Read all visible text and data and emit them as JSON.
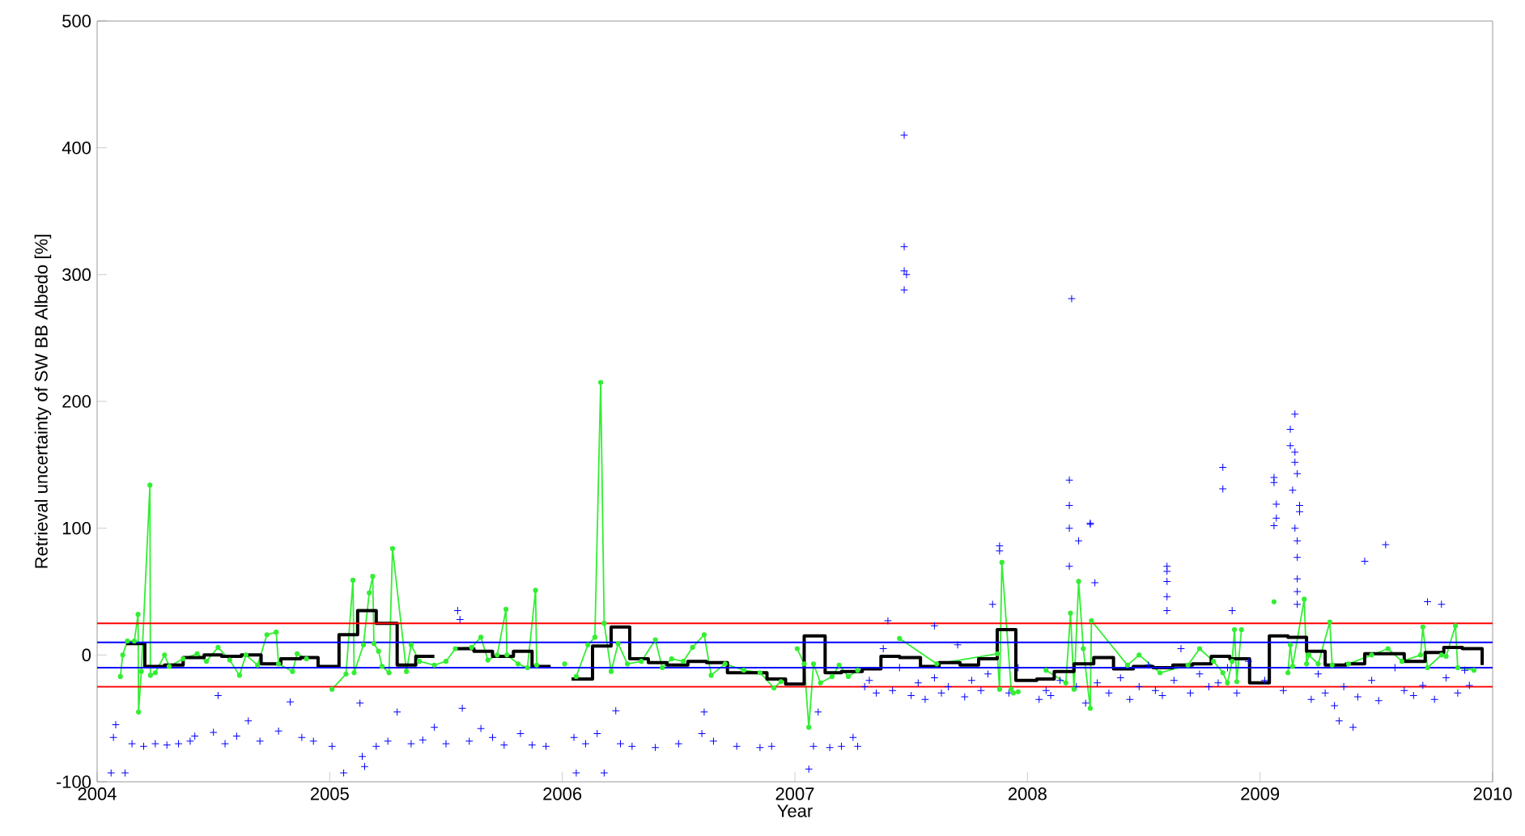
{
  "chart_data": {
    "type": "line",
    "xlabel": "Year",
    "ylabel": "Retrieval uncertainty of SW BB Albedo [%]",
    "xlim": [
      2004,
      2010
    ],
    "xticks": [
      2004,
      2005,
      2006,
      2007,
      2008,
      2009,
      2010
    ],
    "ylim": [
      -100,
      500
    ],
    "yticks": [
      -100,
      0,
      100,
      200,
      300,
      400,
      500
    ],
    "grid": false,
    "series": [
      {
        "type": "scatter",
        "marker": "cross",
        "color": "#0000ff",
        "x": [
          2004.06,
          2004.12,
          2004.08,
          2004.07,
          2004.15,
          2004.2,
          2004.25,
          2004.3,
          2004.35,
          2004.4,
          2004.42,
          2004.5,
          2004.52,
          2004.55,
          2004.6,
          2004.65,
          2004.7,
          2004.78,
          2004.83,
          2004.88,
          2004.93,
          2005.01,
          2005.06,
          2005.13,
          2005.14,
          2005.15,
          2005.2,
          2005.25,
          2005.29,
          2005.35,
          2005.4,
          2005.45,
          2005.5,
          2005.57,
          2005.55,
          2005.56,
          2005.6,
          2005.65,
          2005.7,
          2005.75,
          2005.82,
          2005.87,
          2005.93,
          2006.05,
          2006.06,
          2006.1,
          2006.15,
          2006.18,
          2006.23,
          2006.25,
          2006.3,
          2006.4,
          2006.5,
          2006.6,
          2006.61,
          2006.65,
          2006.75,
          2006.85,
          2006.9,
          2007.06,
          2007.08,
          2007.1,
          2007.15,
          2007.2,
          2007.25,
          2007.27,
          2007.47,
          2007.47,
          2007.47,
          2007.48,
          2007.47,
          2007.4,
          2007.6,
          2007.85,
          2007.88,
          2007.88,
          2008.19,
          2008.18,
          2008.18,
          2008.18,
          2008.18,
          2008.27,
          2008.27,
          2008.22,
          2008.29,
          2008.6,
          2008.6,
          2008.6,
          2008.6,
          2008.6,
          2008.84,
          2008.84,
          2008.88,
          2009.06,
          2009.06,
          2009.07,
          2009.07,
          2009.06,
          2009.15,
          2009.13,
          2009.13,
          2009.15,
          2009.15,
          2009.16,
          2009.14,
          2009.17,
          2009.17,
          2009.15,
          2009.16,
          2009.16,
          2009.16,
          2009.16,
          2009.16,
          2009.54,
          2009.45,
          2009.34,
          2009.4,
          2009.72,
          2009.78,
          2009.9,
          2007.3,
          2007.32,
          2007.35,
          2007.38,
          2007.42,
          2007.45,
          2007.5,
          2007.53,
          2007.56,
          2007.6,
          2007.63,
          2007.66,
          2007.7,
          2007.73,
          2007.76,
          2007.8,
          2007.83,
          2007.92,
          2007.96,
          2008.05,
          2008.08,
          2008.1,
          2008.14,
          2008.21,
          2008.25,
          2008.3,
          2008.35,
          2008.4,
          2008.44,
          2008.48,
          2008.52,
          2008.55,
          2008.58,
          2008.63,
          2008.66,
          2008.7,
          2008.74,
          2008.78,
          2008.82,
          2008.86,
          2008.9,
          2008.95,
          2009.02,
          2009.1,
          2009.22,
          2009.25,
          2009.28,
          2009.32,
          2009.36,
          2009.42,
          2009.48,
          2009.51,
          2009.58,
          2009.62,
          2009.66,
          2009.7,
          2009.75,
          2009.8,
          2009.85,
          2009.88
        ],
        "values": [
          -93,
          -93,
          -55,
          -65,
          -70,
          -72,
          -70,
          -71,
          -70,
          -68,
          -64,
          -61,
          -32,
          -70,
          -64,
          -52,
          -68,
          -60,
          -37,
          -65,
          -68,
          -72,
          -93,
          -38,
          -80,
          -88,
          -72,
          -68,
          -45,
          -70,
          -67,
          -57,
          -70,
          -42,
          35,
          28,
          -68,
          -58,
          -65,
          -71,
          -62,
          -71,
          -72,
          -65,
          -93,
          -70,
          -62,
          -93,
          -44,
          -70,
          -72,
          -73,
          -70,
          -62,
          -45,
          -68,
          -72,
          -73,
          -72,
          -90,
          -72,
          -45,
          -73,
          -72,
          -65,
          -72,
          410,
          322,
          303,
          300,
          288,
          27,
          23,
          40,
          86,
          82,
          281,
          138,
          118,
          100,
          70,
          103,
          104,
          90,
          57,
          70,
          66,
          58,
          46,
          35,
          148,
          131,
          35,
          140,
          136,
          119,
          108,
          102,
          190,
          178,
          165,
          160,
          152,
          143,
          130,
          118,
          113,
          100,
          90,
          77,
          60,
          50,
          40,
          87,
          74,
          -52,
          -57,
          42,
          40,
          -24,
          -25,
          -20,
          -30,
          5,
          -28,
          -10,
          -32,
          -22,
          -35,
          -18,
          -30,
          -25,
          8,
          -33,
          -20,
          -28,
          -15,
          -30,
          -10,
          -35,
          -28,
          -32,
          -20,
          -25,
          -38,
          -22,
          -30,
          -18,
          -35,
          -25,
          -8,
          -28,
          -32,
          -20,
          5,
          -30,
          -15,
          -25,
          -22,
          -10,
          -30,
          -5,
          -20,
          -28,
          -35,
          -15,
          -30,
          -40,
          -25,
          -33,
          -20,
          -36,
          -10,
          -28,
          -32,
          -24,
          -35,
          -18,
          -30,
          -12
        ]
      },
      {
        "marker": "circle",
        "color": "#33ee33",
        "x": [
          2004.1,
          2004.11,
          2004.13,
          2004.16,
          2004.176,
          2004.178,
          2004.19,
          2004.227,
          2004.229,
          2004.25,
          2004.29,
          2004.31,
          2004.37,
          2004.43,
          2004.47,
          2004.52,
          2004.57,
          2004.612,
          2004.64,
          2004.69,
          2004.73,
          2004.77,
          2004.78,
          2004.84,
          2004.86,
          2004.9,
          2004.95,
          2004.98,
          2005.01,
          2005.07,
          2005.1,
          2005.105,
          2005.145,
          2005.17,
          2005.185,
          2005.19,
          2005.21,
          2005.225,
          2005.255,
          2005.27,
          2005.33,
          2005.35,
          2005.385,
          2005.45,
          2005.5,
          2005.54,
          2005.61,
          2005.65,
          2005.68,
          2005.72,
          2005.758,
          2005.762,
          2005.81,
          2005.85,
          2005.885,
          2005.89,
          2005.95,
          2006.01,
          2006.02,
          2006.06,
          2006.11,
          2006.14,
          2006.165,
          2006.18,
          2006.21,
          2006.24,
          2006.28,
          2006.34,
          2006.4,
          2006.43,
          2006.47,
          2006.52,
          2006.56,
          2006.61,
          2006.64,
          2006.7,
          2006.78,
          2006.85,
          2006.91,
          2006.94,
          2006.97,
          2007.01,
          2007.04,
          2007.06,
          2007.08,
          2007.11,
          2007.16,
          2007.19,
          2007.23,
          2007.27,
          2007.44,
          2007.45,
          2007.61,
          2007.87,
          2007.88,
          2007.89,
          2007.93,
          2007.94,
          2007.96,
          2008.02,
          2008.08,
          2008.165,
          2008.185,
          2008.2,
          2008.22,
          2008.24,
          2008.27,
          2008.275,
          2008.43,
          2008.48,
          2008.57,
          2008.69,
          2008.74,
          2008.8,
          2008.84,
          2008.86,
          2008.88,
          2008.89,
          2008.9,
          2008.92,
          2008.99,
          2009.06,
          2009.08,
          2009.12,
          2009.13,
          2009.14,
          2009.19,
          2009.2,
          2009.21,
          2009.25,
          2009.3,
          2009.31,
          2009.38,
          2009.48,
          2009.55,
          2009.61,
          2009.69,
          2009.7,
          2009.72,
          2009.78,
          2009.8,
          2009.84,
          2009.85,
          2009.92
        ],
        "values": [
          -17,
          0,
          11,
          11,
          32,
          -45,
          -13,
          134,
          -16,
          -14,
          0,
          -9,
          -3,
          1,
          -5,
          6,
          -4,
          -16,
          0,
          -8,
          16,
          18,
          -7,
          -13,
          1,
          -3,
          null,
          null,
          -27,
          -15,
          59,
          -14,
          8,
          49,
          62,
          9,
          3,
          -9,
          -14,
          84,
          -13,
          8,
          -5,
          -8,
          -5,
          5,
          6,
          14,
          -4,
          0,
          36,
          0,
          -7,
          -10,
          51,
          -8,
          null,
          -7,
          null,
          -17,
          8,
          14,
          215,
          25,
          -13,
          9,
          -7,
          -5,
          12,
          -10,
          -3,
          -5,
          6,
          16,
          -16,
          -7,
          -12,
          -14,
          -26,
          -21,
          null,
          5,
          -7,
          -57,
          -7,
          -22,
          -17,
          -8,
          -17,
          -12,
          null,
          13,
          -7,
          1,
          -27,
          73,
          -27,
          -30,
          -29,
          null,
          -12,
          -22,
          33,
          -27,
          58,
          5,
          -42,
          27,
          -8,
          0,
          -14,
          -8,
          5,
          -5,
          -14,
          -22,
          -5,
          20,
          -21,
          20,
          null,
          42,
          null,
          -14,
          8,
          -9,
          44,
          -7,
          0,
          -7,
          26,
          -8,
          -7,
          0,
          5,
          -5,
          0,
          22,
          -10,
          0,
          -1,
          23,
          -10,
          -12
        ]
      },
      {
        "type": "step",
        "marker": "none",
        "color": "#000000",
        "x": [
          2004.125,
          2004.205,
          2004.29,
          2004.37,
          2004.46,
          2004.535,
          2004.62,
          2004.705,
          2004.79,
          2004.875,
          2004.95,
          2005.04,
          2005.12,
          2005.2,
          2005.29,
          2005.37,
          2005.45,
          2005.5,
          2005.54,
          2005.62,
          2005.7,
          2005.79,
          2005.87,
          2005.95,
          2006.0,
          2006.04,
          2006.13,
          2006.21,
          2006.29,
          2006.37,
          2006.45,
          2006.54,
          2006.62,
          2006.71,
          2006.79,
          2006.88,
          2006.96,
          2007.04,
          2007.13,
          2007.2,
          2007.29,
          2007.37,
          2007.45,
          2007.54,
          2007.62,
          2007.71,
          2007.79,
          2007.87,
          2007.95,
          2008.04,
          2008.115,
          2008.2,
          2008.285,
          2008.37,
          2008.455,
          2008.54,
          2008.625,
          2008.71,
          2008.79,
          2008.87,
          2008.955,
          2009.04,
          2009.12,
          2009.2,
          2009.28,
          2009.37,
          2009.45,
          2009.54,
          2009.62,
          2009.71,
          2009.79,
          2009.87,
          2009.955
        ],
        "values": [
          9,
          -9,
          -8,
          -2,
          0,
          -1,
          0,
          -7,
          -3,
          -2,
          -9,
          16,
          35,
          25,
          -8,
          -1,
          -1,
          null,
          5,
          3,
          -1,
          3,
          -9,
          -9,
          null,
          -19,
          7,
          22,
          -3,
          -6,
          -8,
          -5,
          -6,
          -14,
          -14,
          -19,
          -23,
          15,
          -14,
          -13,
          -11,
          -1,
          -2,
          -9,
          -6,
          -8,
          -3,
          20,
          -20,
          -19,
          -13,
          -7,
          -2,
          -11,
          -9,
          -10,
          -8,
          -7,
          -1,
          -3,
          -22,
          15,
          14,
          3,
          -8,
          -7,
          1,
          1,
          -5,
          2,
          6,
          5,
          -8
        ]
      }
    ],
    "ref_lines": [
      {
        "axis": "y",
        "value": 25,
        "color": "#ff0000"
      },
      {
        "axis": "y",
        "value": -25,
        "color": "#ff0000"
      },
      {
        "axis": "y",
        "value": 10,
        "color": "#0000ff"
      },
      {
        "axis": "y",
        "value": -10,
        "color": "#0000ff"
      }
    ]
  }
}
